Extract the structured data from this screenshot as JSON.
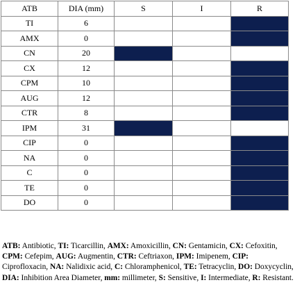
{
  "colors": {
    "fill": "#0d1f4f",
    "border": "#8a8a8a"
  },
  "table": {
    "headers": [
      "ATB",
      "DIA (mm)",
      "S",
      "I",
      "R"
    ],
    "rows": [
      {
        "atb": "TI",
        "dia": "6",
        "result": "R"
      },
      {
        "atb": "AMX",
        "dia": "0",
        "result": "R"
      },
      {
        "atb": "CN",
        "dia": "20",
        "result": "S"
      },
      {
        "atb": "CX",
        "dia": "12",
        "result": "R"
      },
      {
        "atb": "CPM",
        "dia": "10",
        "result": "R"
      },
      {
        "atb": "AUG",
        "dia": "12",
        "result": "R"
      },
      {
        "atb": "CTR",
        "dia": "8",
        "result": "R"
      },
      {
        "atb": "IPM",
        "dia": "31",
        "result": "S"
      },
      {
        "atb": "CIP",
        "dia": "0",
        "result": "R"
      },
      {
        "atb": "NA",
        "dia": "0",
        "result": "R"
      },
      {
        "atb": "C",
        "dia": "0",
        "result": "R"
      },
      {
        "atb": "TE",
        "dia": "0",
        "result": "R"
      },
      {
        "atb": "DO",
        "dia": "0",
        "result": "R"
      }
    ]
  },
  "legend": {
    "entries": [
      {
        "abbr": "ATB:",
        "text": " Antibiotic,  "
      },
      {
        "abbr": "TI:",
        "text": " Ticarcillin,  "
      },
      {
        "abbr": "AMX:",
        "text": " Amoxicillin,  "
      },
      {
        "abbr": "CN:",
        "text": " Gentamicin, "
      },
      {
        "abbr": "CX:",
        "text": " Cefoxitin, "
      },
      {
        "abbr": "CPM:",
        "text": " Cefepim, "
      },
      {
        "abbr": "AUG:",
        "text": " Augmentin, "
      },
      {
        "abbr": "CTR:",
        "text": " Ceftriaxon, "
      },
      {
        "abbr": "IPM:",
        "text": " Imipenem, "
      },
      {
        "abbr": "CIP:",
        "text": " Ciprofloxacin, "
      },
      {
        "abbr": "NA:",
        "text": " Nalidixic acid, "
      },
      {
        "abbr": "C:",
        "text": " Chloramphenicol, "
      },
      {
        "abbr": "TE:",
        "text": " Tetracyclin, "
      },
      {
        "abbr": "DO:",
        "text": " Doxycyclin, "
      },
      {
        "abbr": "DIA:",
        "text": " Inhibition Area Diameter, "
      },
      {
        "abbr": "mm:",
        "text": " millimeter, "
      },
      {
        "abbr": "S:",
        "text": " Sensitive, "
      },
      {
        "abbr": "I:",
        "text": " Intermediate, "
      },
      {
        "abbr": "R:",
        "text": " Resistant."
      }
    ]
  }
}
